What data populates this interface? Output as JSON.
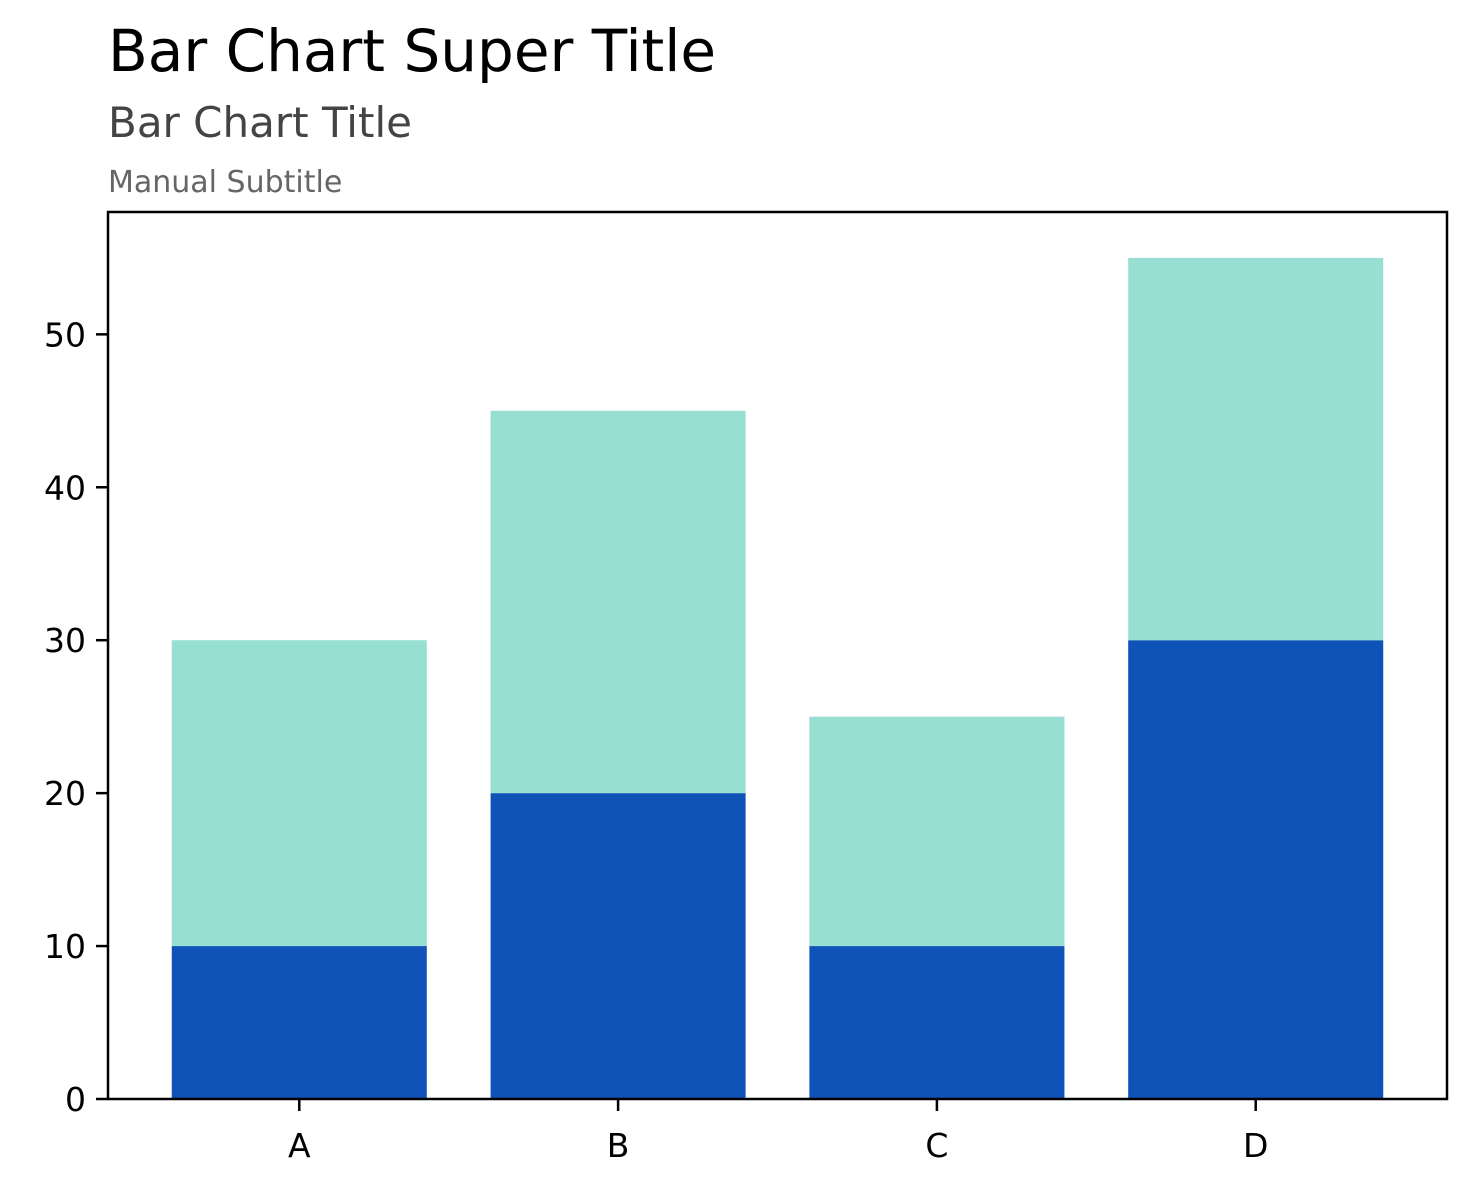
{
  "chart_data": {
    "type": "bar",
    "stacked": true,
    "supertitle": "Bar Chart Super Title",
    "title": "Bar Chart Title",
    "subtitle": "Manual Subtitle",
    "xlabel": "",
    "ylabel": "",
    "categories": [
      "A",
      "B",
      "C",
      "D"
    ],
    "series": [
      {
        "values": [
          10,
          20,
          10,
          30
        ],
        "color": "#1053b8"
      },
      {
        "values": [
          20,
          25,
          15,
          25
        ],
        "color": "#97dfd2"
      }
    ],
    "ylim": [
      0,
      58
    ],
    "yticks": [
      0,
      10,
      20,
      30,
      40,
      50
    ],
    "grid": false,
    "legend": "none"
  }
}
